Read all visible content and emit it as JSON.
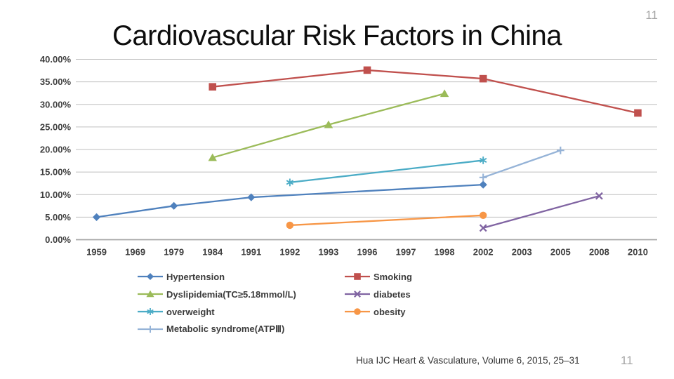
{
  "slide": {
    "page_number_top": "11",
    "page_number_bottom": "11",
    "citation": "Hua IJC Heart & Vasculature, Volume 6, 2015, 25–31"
  },
  "chart_data": {
    "type": "line",
    "title": "Cardiovascular Risk Factors in China",
    "xlabel": "",
    "ylabel": "",
    "ylim": [
      0,
      40
    ],
    "ytick_step": 5,
    "ytick_labels": [
      "0.00%",
      "5.00%",
      "10.00%",
      "15.00%",
      "20.00%",
      "25.00%",
      "30.00%",
      "35.00%",
      "40.00%"
    ],
    "grid": true,
    "legend_position": "bottom",
    "categories": [
      "1959",
      "1969",
      "1979",
      "1984",
      "1991",
      "1992",
      "1993",
      "1996",
      "1997",
      "1998",
      "2002",
      "2003",
      "2005",
      "2008",
      "2010"
    ],
    "series": [
      {
        "name": "Hypertension",
        "color": "#4F81BD",
        "marker": "diamond",
        "points": [
          [
            "1959",
            5.0
          ],
          [
            "1979",
            7.5
          ],
          [
            "1991",
            9.4
          ],
          [
            "2002",
            12.2
          ]
        ]
      },
      {
        "name": "Smoking",
        "color": "#C0504D",
        "marker": "square",
        "points": [
          [
            "1984",
            33.9
          ],
          [
            "1996",
            37.6
          ],
          [
            "2002",
            35.7
          ],
          [
            "2010",
            28.1
          ]
        ]
      },
      {
        "name": "Dyslipidemia(TC≥5.18mmol/L)",
        "color": "#9BBB59",
        "marker": "triangle",
        "points": [
          [
            "1984",
            18.2
          ],
          [
            "1993",
            25.5
          ],
          [
            "1998",
            32.4
          ]
        ]
      },
      {
        "name": "diabetes",
        "color": "#8064A2",
        "marker": "x",
        "points": [
          [
            "2002",
            2.6
          ],
          [
            "2008",
            9.7
          ]
        ]
      },
      {
        "name": "overweight",
        "color": "#4BACC6",
        "marker": "asterisk",
        "points": [
          [
            "1992",
            12.7
          ],
          [
            "2002",
            17.6
          ]
        ]
      },
      {
        "name": "obesity",
        "color": "#F79646",
        "marker": "circle",
        "points": [
          [
            "1992",
            3.2
          ],
          [
            "2002",
            5.4
          ]
        ]
      },
      {
        "name": "Metabolic syndrome(ATPⅢ)",
        "color": "#95B3D7",
        "marker": "plus",
        "points": [
          [
            "2002",
            13.8
          ],
          [
            "2005",
            19.8
          ]
        ]
      }
    ],
    "legend_columns": [
      [
        "Hypertension",
        "Dyslipidemia(TC≥5.18mmol/L)",
        "overweight",
        "Metabolic syndrome(ATPⅢ)"
      ],
      [
        "Smoking",
        "diabetes",
        "obesity"
      ]
    ],
    "colors": {
      "grid": "#BFBFBF",
      "axis": "#A6A6A6",
      "axis_text": "#3F3F3F",
      "title_text": "#0D0D0D",
      "page_number": "#A6A6A6",
      "citation_text": "#333333"
    }
  }
}
